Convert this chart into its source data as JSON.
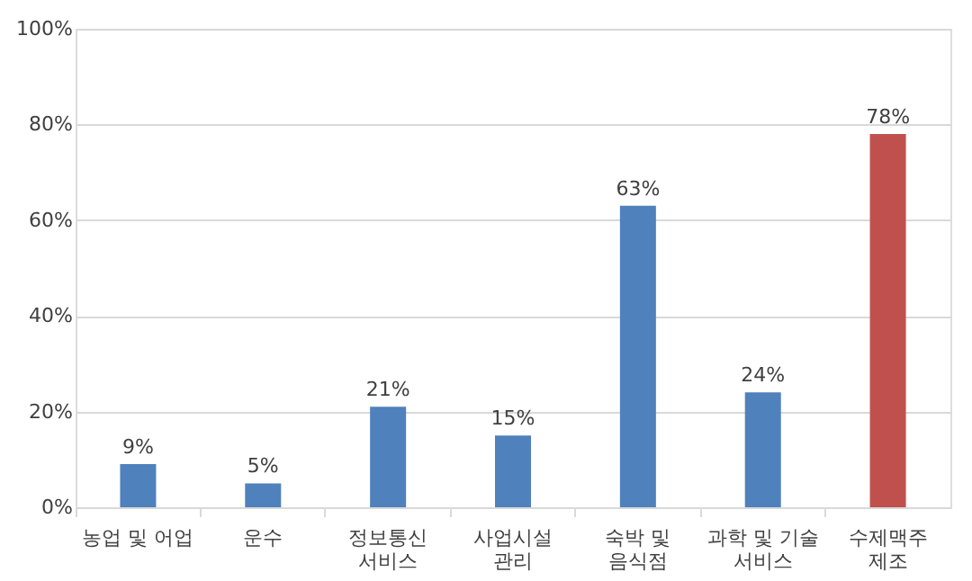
{
  "chart_data": {
    "type": "bar",
    "categories": [
      "농업 및 어업",
      "운수",
      "정보통신\n서비스",
      "사업시설\n관리",
      "숙박 및\n음식점",
      "과학 및 기술\n서비스",
      "수제맥주\n제조"
    ],
    "values": [
      9,
      5,
      21,
      15,
      63,
      24,
      78
    ],
    "value_labels": [
      "9%",
      "5%",
      "21%",
      "15%",
      "63%",
      "24%",
      "78%"
    ],
    "colors": [
      "#4f81bd",
      "#4f81bd",
      "#4f81bd",
      "#4f81bd",
      "#4f81bd",
      "#4f81bd",
      "#c0504d"
    ],
    "ylim": [
      0,
      100
    ],
    "yticks": [
      {
        "value": 0,
        "label": "0%"
      },
      {
        "value": 20,
        "label": "20%"
      },
      {
        "value": 40,
        "label": "40%"
      },
      {
        "value": 60,
        "label": "60%"
      },
      {
        "value": 80,
        "label": "80%"
      },
      {
        "value": 100,
        "label": "100%"
      }
    ],
    "grid": "y"
  }
}
